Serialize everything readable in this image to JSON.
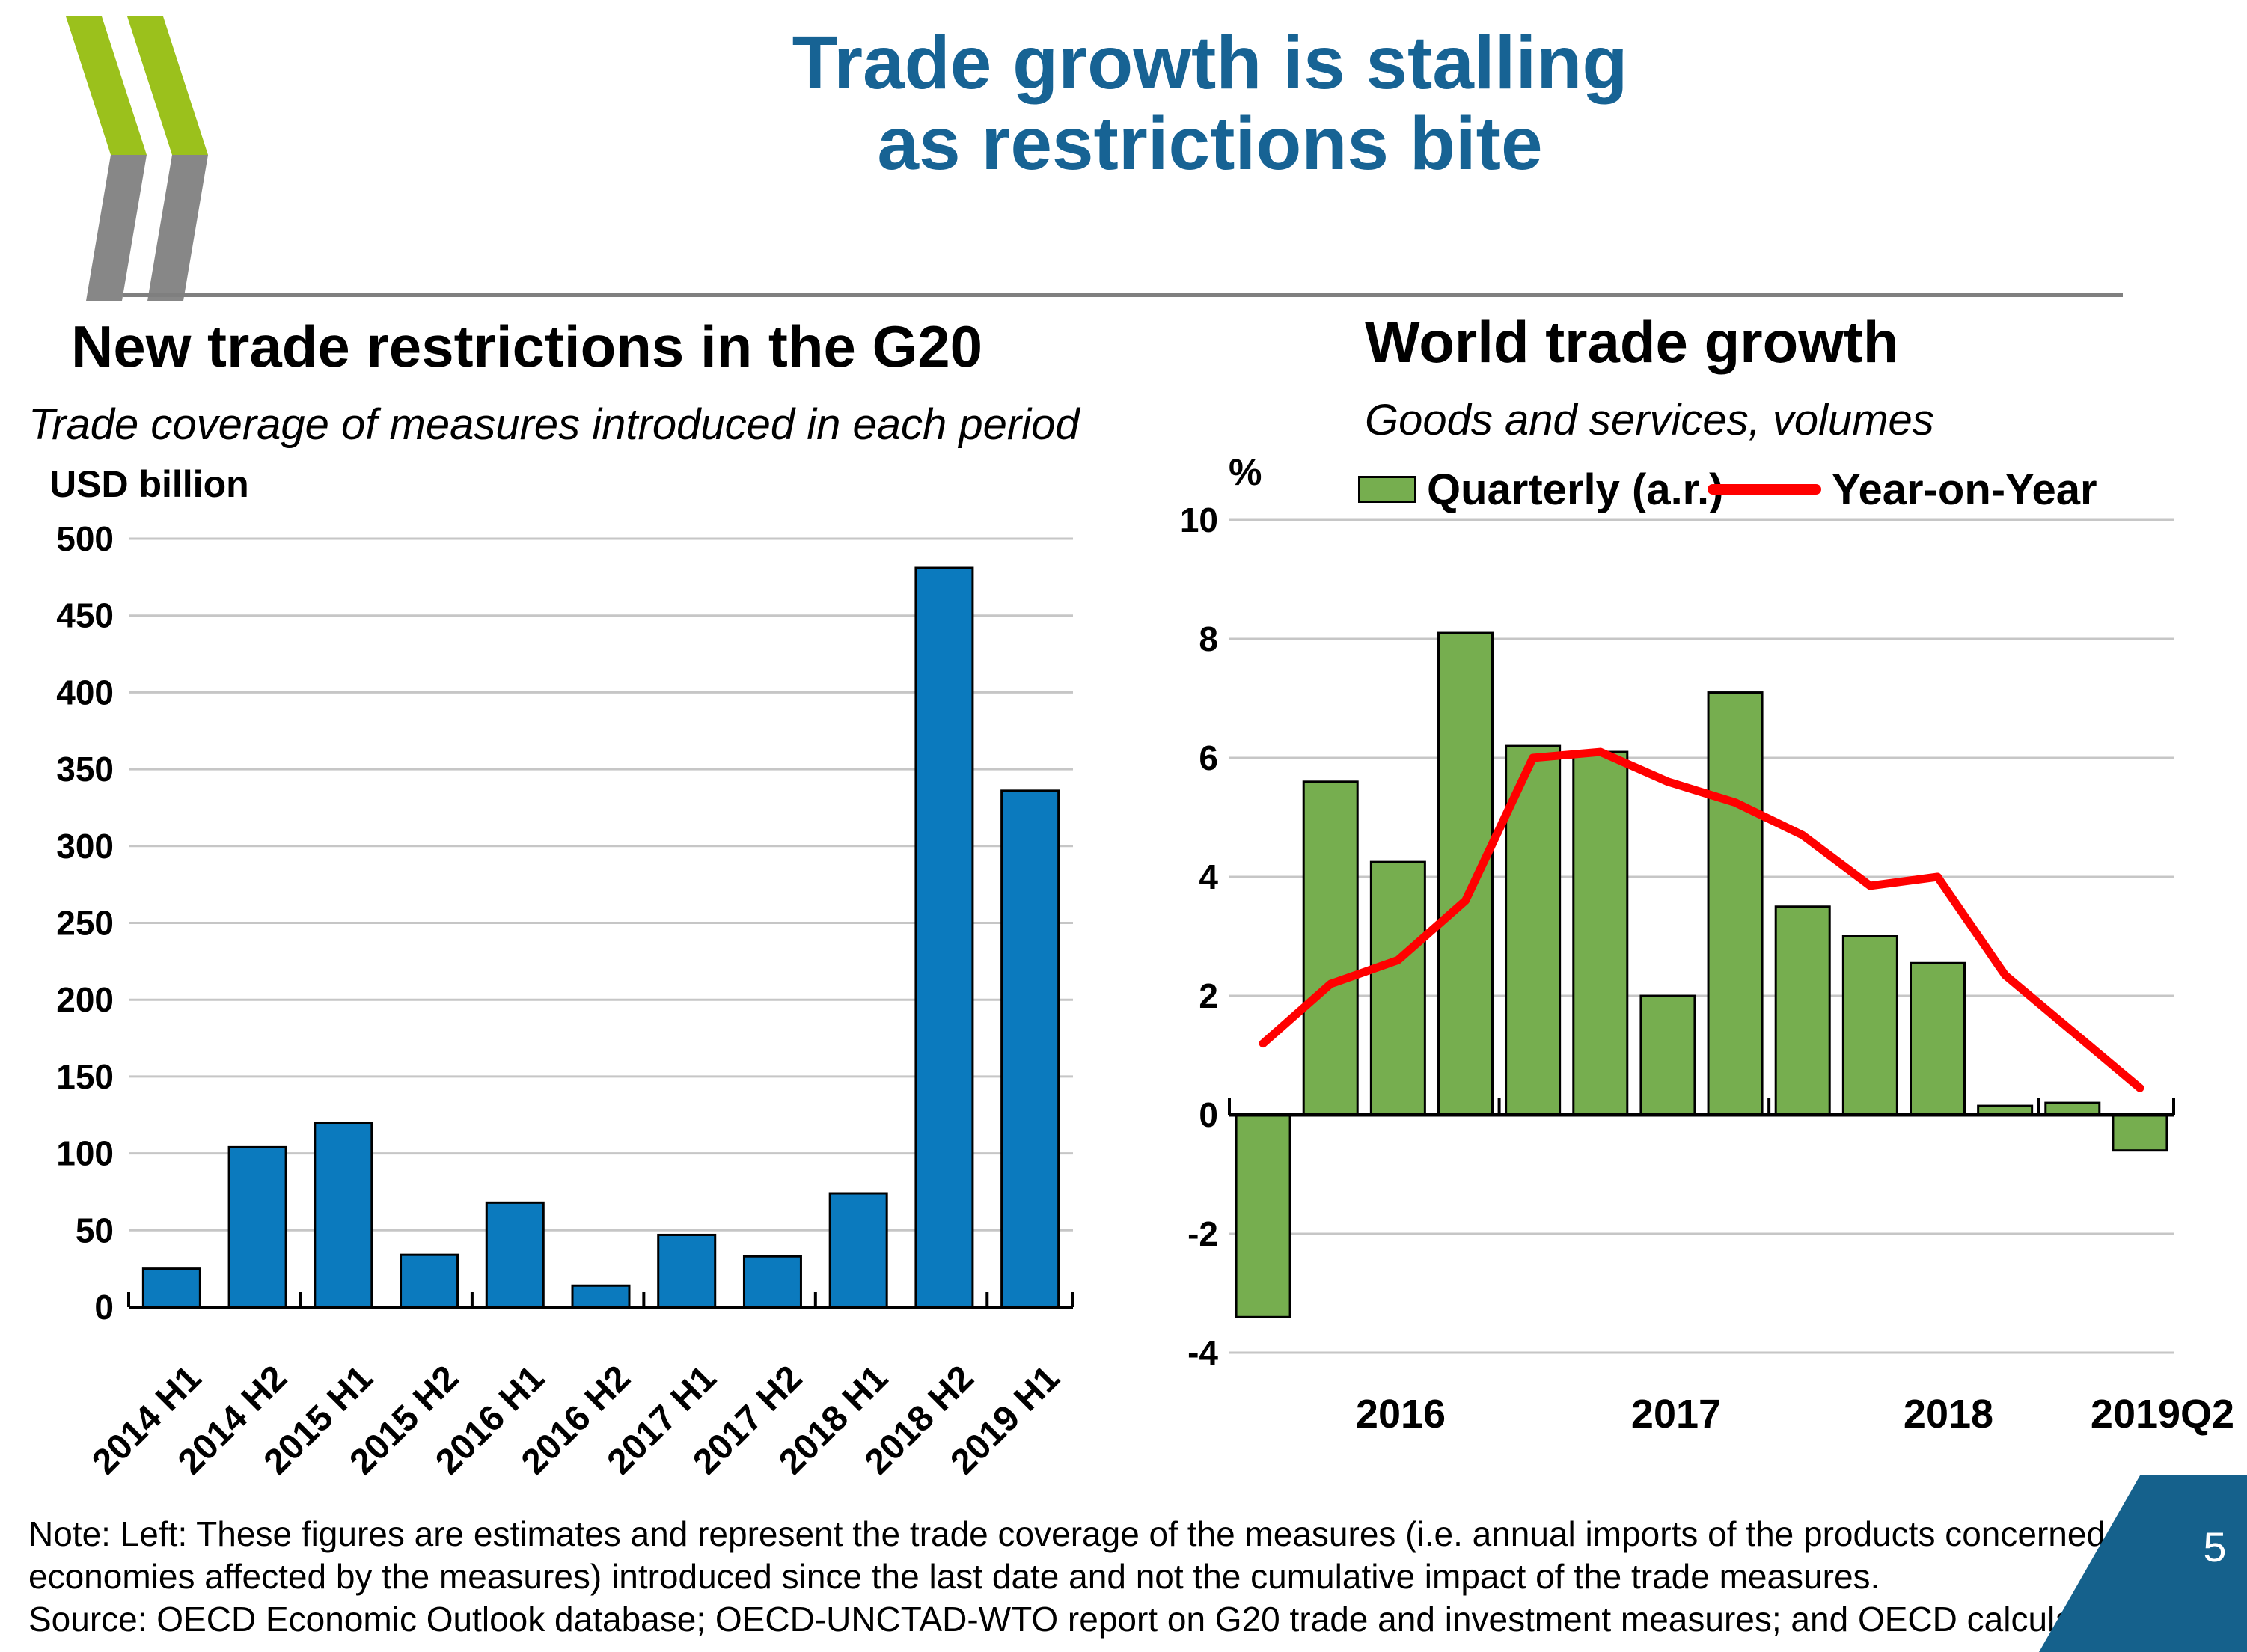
{
  "header": {
    "title_line1": "Trade growth is stalling",
    "title_line2": "as restrictions bite"
  },
  "chart_data": [
    {
      "type": "bar",
      "title": "New trade restrictions in the G20",
      "subtitle": "Trade coverage of measures introduced in each period",
      "ylabel": "USD billion",
      "categories": [
        "2014 H1",
        "2014 H2",
        "2015 H1",
        "2015 H2",
        "2016 H1",
        "2016 H2",
        "2017 H1",
        "2017 H2",
        "2018 H1",
        "2018 H2",
        "2019 H1"
      ],
      "values": [
        25,
        104,
        120,
        34,
        68,
        14,
        47,
        33,
        74,
        481,
        336
      ],
      "ylim": [
        0,
        500
      ],
      "yticks": [
        0,
        50,
        100,
        150,
        200,
        250,
        300,
        350,
        400,
        450,
        500
      ],
      "grid": true,
      "bar_color": "#0b7abe"
    },
    {
      "type": "bar+line",
      "title": "World trade growth",
      "subtitle": "Goods and services, volumes",
      "ylabel": "%",
      "x_labels": [
        "2016",
        "2017",
        "2018",
        "2019Q2"
      ],
      "series": [
        {
          "name": "Quarterly (a.r.)",
          "type": "bar",
          "color": "#76ae4f",
          "values": [
            -3.4,
            5.6,
            4.25,
            8.1,
            6.2,
            6.1,
            2.0,
            7.1,
            3.5,
            3.0,
            2.55,
            0.15,
            0.2,
            -0.6
          ]
        },
        {
          "name": "Year-on-Year",
          "type": "line",
          "color": "#ff0000",
          "values": [
            1.2,
            2.2,
            2.6,
            3.6,
            6.0,
            6.1,
            5.6,
            5.25,
            4.7,
            3.85,
            4.0,
            2.35,
            1.4,
            0.45
          ]
        }
      ],
      "ylim": [
        -4,
        10
      ],
      "yticks": [
        10,
        8,
        6,
        4,
        2,
        0,
        -2,
        -4
      ],
      "grid": true,
      "legend_position": "top"
    }
  ],
  "footer": {
    "note_line1": "Note: Left: These figures are estimates and represent the trade coverage of the measures (i.e. annual imports of the products concerned in",
    "note_line2": "economies affected by the measures) introduced since the last date and not the cumulative impact of the trade measures.",
    "note_line3": "Source: OECD Economic Outlook database; OECD-UNCTAD-WTO report on G20 trade and investment measures; and OECD calculations.",
    "page_number": "5"
  },
  "colors": {
    "title": "#176394",
    "bar_blue": "#0b7abe",
    "bar_green": "#76ae4f",
    "line_red": "#ff0000",
    "grid": "#c6c6c6",
    "axis": "#000000",
    "divider": "#7f7f7f",
    "logo_green": "#9bc11c",
    "logo_gray": "#878787",
    "corner_blue": "#15618c"
  }
}
